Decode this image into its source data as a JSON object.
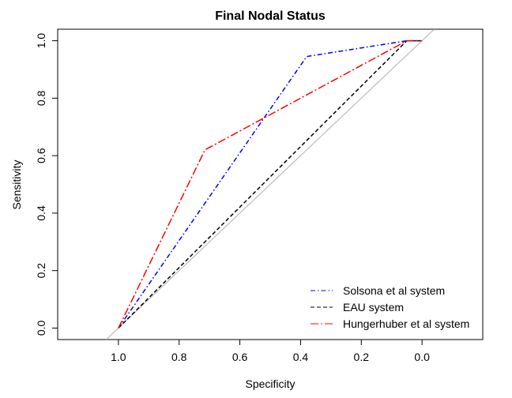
{
  "chart_data": {
    "type": "line",
    "title": "Final Nodal Status",
    "xlabel": "Specificity",
    "ylabel": "Sensitivity",
    "xlim": [
      1.2,
      -0.2
    ],
    "ylim": [
      -0.04,
      1.04
    ],
    "x_reversed": true,
    "x_ticks": [
      1.0,
      0.8,
      0.6,
      0.4,
      0.2,
      0.0
    ],
    "x_tick_labels": [
      "1.0",
      "0.8",
      "0.6",
      "0.4",
      "0.2",
      "0.0"
    ],
    "y_ticks": [
      0.0,
      0.2,
      0.4,
      0.6,
      0.8,
      1.0
    ],
    "y_tick_labels": [
      "0.0",
      "0.2",
      "0.4",
      "0.6",
      "0.8",
      "1.0"
    ],
    "grid": false,
    "legend_position": "bottom-right",
    "reference_line": {
      "from": [
        1.0,
        0.0
      ],
      "to": [
        0.0,
        1.0
      ],
      "color": "#b0b0b0"
    },
    "series": [
      {
        "name": "Solsona et al system",
        "color": "#0000ff",
        "dash": "dotdash",
        "x": [
          1.0,
          0.38,
          0.05,
          0.0
        ],
        "y": [
          0.0,
          0.945,
          1.0,
          1.0
        ]
      },
      {
        "name": "EAU system",
        "color": "#000000",
        "dash": "dashed",
        "x": [
          1.0,
          0.05,
          0.0
        ],
        "y": [
          0.0,
          1.0,
          1.0
        ]
      },
      {
        "name": "Hungerhuber et al system",
        "color": "#ff0000",
        "dash": "longdash",
        "x": [
          1.0,
          0.715,
          0.05,
          0.0
        ],
        "y": [
          0.0,
          0.62,
          1.0,
          1.0
        ]
      }
    ]
  }
}
